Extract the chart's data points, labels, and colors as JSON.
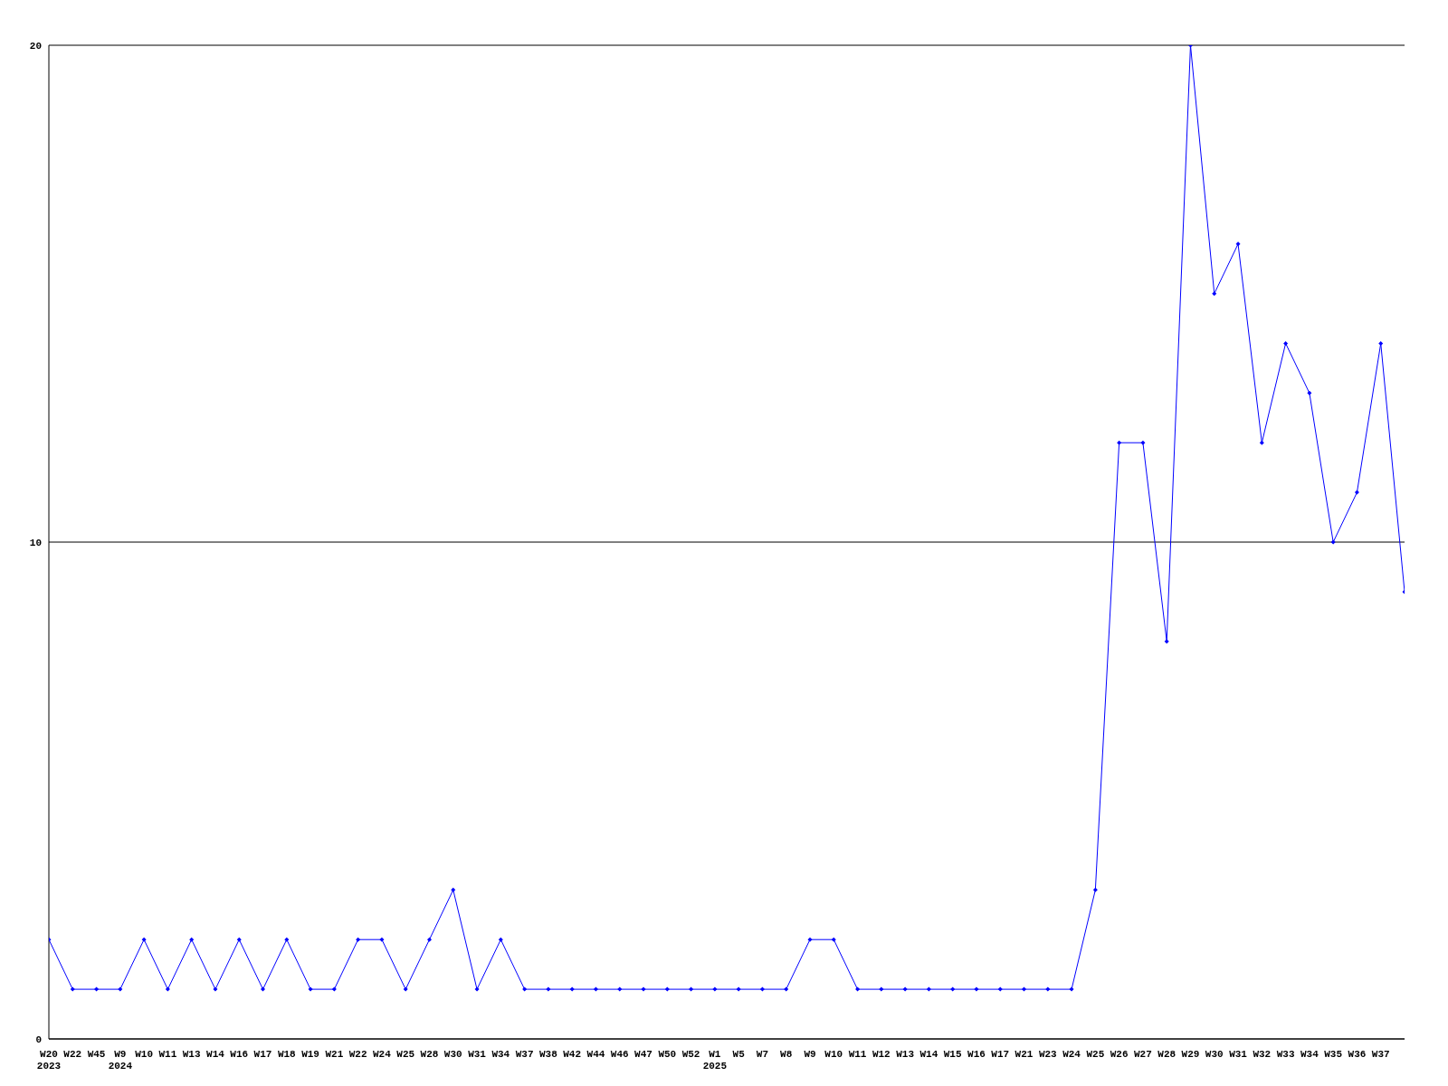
{
  "chart_data": {
    "type": "line",
    "categories": [
      "W20\n2023",
      "W22",
      "W45",
      "W9\n2024",
      "W10",
      "W11",
      "W13",
      "W14",
      "W16",
      "W17",
      "W18",
      "W19",
      "W21",
      "W22",
      "W24",
      "W25",
      "W28",
      "W30",
      "W31",
      "W34",
      "W37",
      "W38",
      "W42",
      "W44",
      "W46",
      "W47",
      "W50",
      "W52",
      "W1\n2025",
      "W5",
      "W7",
      "W8",
      "W9",
      "W10",
      "W11",
      "W12",
      "W13",
      "W14",
      "W15",
      "W16",
      "W17",
      "W21",
      "W23",
      "W24",
      "W25",
      "W26",
      "W27",
      "W28",
      "W29",
      "W30",
      "W31",
      "W32",
      "W33",
      "W34",
      "W35",
      "W36",
      "W37",
      null
    ],
    "series": [
      {
        "color": "#0000ff",
        "values": [
          2,
          1,
          1,
          1,
          2,
          1,
          2,
          1,
          2,
          1,
          2,
          1,
          1,
          2,
          2,
          1,
          2,
          3,
          1,
          2,
          1,
          1,
          1,
          1,
          1,
          1,
          1,
          1,
          1,
          1,
          1,
          1,
          2,
          2,
          1,
          1,
          1,
          1,
          1,
          1,
          1,
          1,
          1,
          1,
          3,
          12,
          12,
          8,
          20,
          15,
          16,
          12,
          14,
          13,
          10,
          11,
          14,
          9
        ]
      }
    ],
    "ylim": [
      0,
      20
    ],
    "yticks": [
      0,
      10,
      20
    ],
    "grid": "y",
    "marker": "diamond",
    "line_style": "solid"
  }
}
